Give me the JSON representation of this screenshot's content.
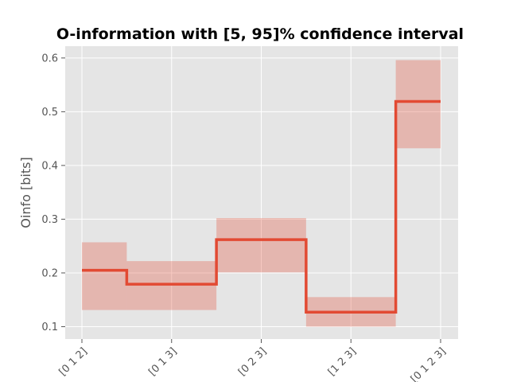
{
  "chart_data": {
    "type": "step",
    "title": "O-information with [5, 95]% confidence interval",
    "ylabel": "Oinfo [bits]",
    "xlabel": "",
    "categories": [
      "[0 1 2]",
      "[0 1 3]",
      "[0 2 3]",
      "[1 2 3]",
      "[0 1 2 3]"
    ],
    "values": [
      0.205,
      0.179,
      0.262,
      0.127,
      0.519
    ],
    "ci_low": [
      0.131,
      0.131,
      0.201,
      0.1,
      0.432
    ],
    "ci_high": [
      0.257,
      0.222,
      0.302,
      0.155,
      0.596
    ],
    "ylim": [
      0.077,
      0.622
    ],
    "yticks": [
      0.1,
      0.2,
      0.3,
      0.4,
      0.5,
      0.6
    ],
    "ytick_labels": [
      "0.1",
      "0.2",
      "0.3",
      "0.4",
      "0.5",
      "0.6"
    ],
    "grid": true,
    "line_color": "#e24a33",
    "band_color": "#e24a33",
    "background_color": "#e5e5e5"
  }
}
